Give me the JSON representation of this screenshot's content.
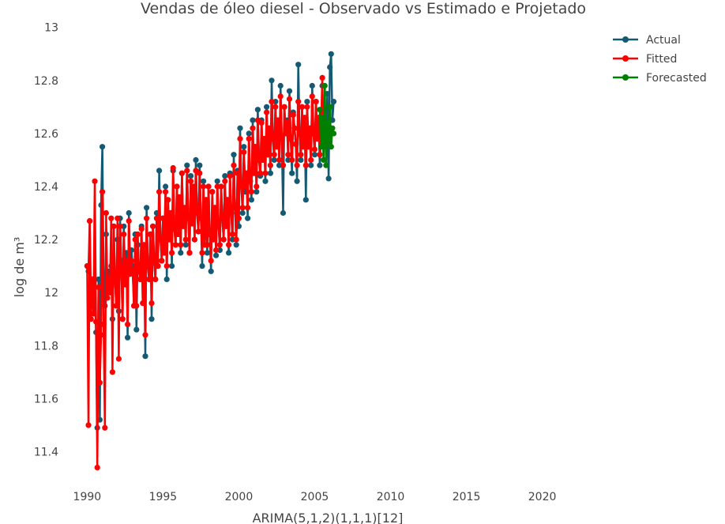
{
  "chart_data": {
    "type": "line",
    "title": "Vendas de óleo diesel - Observado vs Estimado e Projetado",
    "xlabel": "ARIMA(5,1,2)(1,1,1)[12]",
    "ylabel": "log de m³",
    "xlim": [
      1989.2,
      2022.0
    ],
    "ylim": [
      11.3,
      13.02
    ],
    "x_ticks": [
      1990,
      1995,
      2000,
      2005,
      2010,
      2015,
      2020
    ],
    "x_tick_labels": [
      "1990",
      "1995",
      "2000",
      "2005",
      "2010",
      "2015",
      "2020"
    ],
    "y_ticks": [
      11.4,
      11.6,
      11.8,
      12.0,
      12.2,
      12.4,
      12.6,
      12.8,
      13.0
    ],
    "y_tick_labels": [
      "11.4",
      "11.6",
      "11.8",
      "12",
      "12.2",
      "12.4",
      "12.6",
      "12.8",
      "13"
    ],
    "grid": true,
    "legend_position": "top-right",
    "x_start": 1990.0,
    "x_step": 0.08333,
    "series": [
      {
        "name": "Actual",
        "color": "#155a73",
        "values": [
          12.1,
          12.08,
          12.27,
          11.98,
          12.05,
          11.92,
          12.02,
          11.85,
          11.49,
          12.05,
          11.52,
          12.33,
          12.55,
          12.03,
          11.95,
          12.22,
          12.02,
          12.08,
          12.0,
          12.1,
          11.9,
          12.25,
          12.05,
          11.95,
          12.2,
          11.93,
          12.28,
          12.12,
          11.9,
          12.25,
          12.05,
          12.15,
          11.83,
          12.3,
          12.07,
          12.16,
          12.1,
          11.95,
          12.22,
          11.86,
          12.18,
          12.08,
          12.05,
          12.25,
          11.96,
          12.18,
          11.76,
          12.32,
          12.1,
          12.05,
          12.22,
          11.9,
          12.25,
          12.12,
          12.05,
          12.3,
          12.1,
          12.46,
          12.2,
          12.12,
          12.28,
          12.15,
          12.4,
          12.05,
          12.35,
          12.2,
          12.3,
          12.1,
          12.46,
          12.24,
          12.18,
          12.4,
          12.22,
          12.36,
          12.15,
          12.45,
          12.25,
          12.32,
          12.18,
          12.48,
          12.28,
          12.15,
          12.44,
          12.26,
          12.4,
          12.2,
          12.5,
          12.3,
          12.23,
          12.48,
          12.28,
          12.1,
          12.42,
          12.18,
          12.35,
          12.15,
          12.4,
          12.22,
          12.08,
          12.38,
          12.2,
          12.32,
          12.14,
          12.42,
          12.25,
          12.16,
          12.4,
          12.28,
          12.2,
          12.44,
          12.25,
          12.35,
          12.15,
          12.45,
          12.3,
          12.2,
          12.52,
          12.32,
          12.18,
          12.46,
          12.25,
          12.62,
          12.4,
          12.3,
          12.55,
          12.38,
          12.45,
          12.28,
          12.6,
          12.42,
          12.35,
          12.65,
          12.45,
          12.55,
          12.38,
          12.69,
          12.5,
          12.44,
          12.65,
          12.5,
          12.58,
          12.42,
          12.7,
          12.52,
          12.62,
          12.45,
          12.8,
          12.58,
          12.5,
          12.72,
          12.55,
          12.65,
          12.48,
          12.78,
          12.58,
          12.3,
          12.7,
          12.6,
          12.65,
          12.5,
          12.76,
          12.58,
          12.45,
          12.68,
          12.62,
          12.56,
          12.42,
          12.86,
          12.6,
          12.5,
          12.7,
          12.55,
          12.66,
          12.35,
          12.72,
          12.55,
          12.62,
          12.48,
          12.78,
          12.6,
          12.52,
          12.72,
          12.58,
          12.66,
          12.48,
          12.6,
          12.78,
          12.55,
          12.62,
          12.58,
          12.75,
          12.43,
          12.85,
          12.9,
          12.65,
          12.72
        ]
      },
      {
        "name": "Fitted",
        "color": "#ff0000",
        "values": [
          12.1,
          11.5,
          12.27,
          11.9,
          12.05,
          11.92,
          12.42,
          11.89,
          11.34,
          12.02,
          11.66,
          11.84,
          12.38,
          11.88,
          11.49,
          12.3,
          11.98,
          12.05,
          12.0,
          12.28,
          11.7,
          12.25,
          12.05,
          11.95,
          12.28,
          11.75,
          12.25,
          12.1,
          11.9,
          12.22,
          12.03,
          12.12,
          11.88,
          12.27,
          12.07,
          12.12,
          12.08,
          11.95,
          12.2,
          11.95,
          12.22,
          12.08,
          12.05,
          12.24,
          11.96,
          12.18,
          11.84,
          12.28,
          12.1,
          12.05,
          12.22,
          11.96,
          12.25,
          12.12,
          12.05,
          12.28,
          12.1,
          12.38,
          12.2,
          12.12,
          12.28,
          12.15,
          12.38,
          12.1,
          12.35,
          12.2,
          12.3,
          12.15,
          12.47,
          12.24,
          12.18,
          12.4,
          12.22,
          12.36,
          12.18,
          12.45,
          12.25,
          12.32,
          12.2,
          12.46,
          12.28,
          12.15,
          12.42,
          12.26,
          12.4,
          12.2,
          12.46,
          12.3,
          12.23,
          12.45,
          12.28,
          12.15,
          12.4,
          12.18,
          12.35,
          12.18,
          12.4,
          12.22,
          12.12,
          12.38,
          12.2,
          12.32,
          12.16,
          12.4,
          12.25,
          12.18,
          12.4,
          12.28,
          12.2,
          12.42,
          12.25,
          12.35,
          12.18,
          12.44,
          12.3,
          12.22,
          12.48,
          12.32,
          12.2,
          12.45,
          12.28,
          12.58,
          12.4,
          12.32,
          12.53,
          12.4,
          12.45,
          12.32,
          12.58,
          12.42,
          12.38,
          12.62,
          12.45,
          12.55,
          12.4,
          12.65,
          12.5,
          12.45,
          12.64,
          12.5,
          12.58,
          12.45,
          12.68,
          12.52,
          12.62,
          12.48,
          12.72,
          12.58,
          12.52,
          12.7,
          12.55,
          12.65,
          12.5,
          12.74,
          12.58,
          12.48,
          12.7,
          12.6,
          12.64,
          12.52,
          12.73,
          12.58,
          12.5,
          12.67,
          12.62,
          12.56,
          12.48,
          12.72,
          12.6,
          12.52,
          12.7,
          12.55,
          12.66,
          12.48,
          12.7,
          12.55,
          12.62,
          12.5,
          12.74,
          12.6,
          12.54,
          12.72,
          12.58,
          12.66,
          12.52,
          12.62,
          12.81,
          12.56,
          12.62,
          12.58
        ]
      },
      {
        "name": "Forecasted",
        "color": "#008000",
        "values": [
          12.69,
          12.55,
          12.66,
          12.5,
          12.78,
          12.48,
          12.64,
          12.57,
          12.7,
          12.55,
          12.62,
          12.6
        ]
      }
    ]
  }
}
